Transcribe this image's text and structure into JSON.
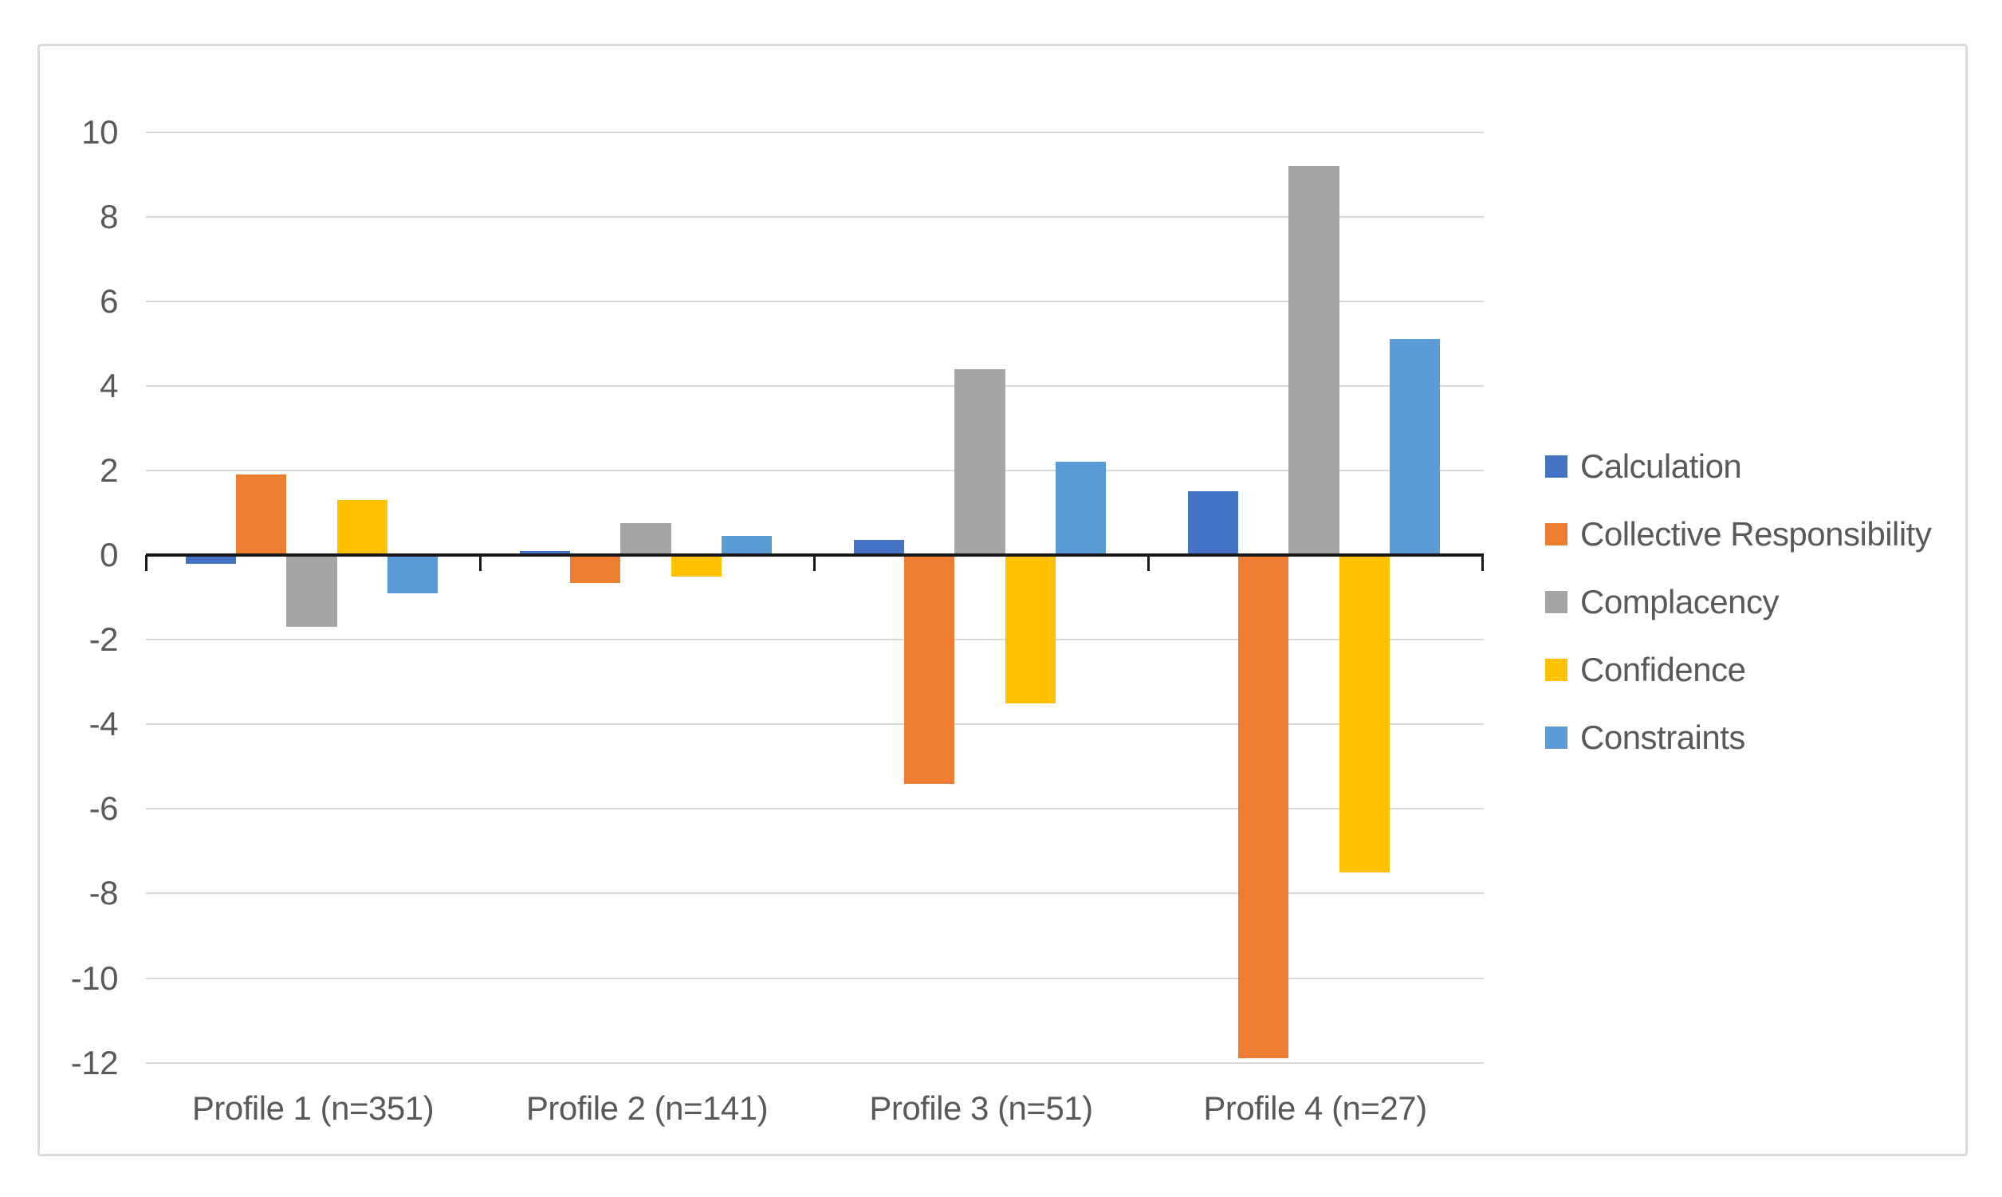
{
  "chart_data": {
    "type": "bar",
    "title": "",
    "categories": [
      "Profile 1 (n=351)",
      "Profile 2 (n=141)",
      "Profile 3 (n=51)",
      "Profile 4 (n=27)"
    ],
    "series": [
      {
        "name": "Calculation",
        "color": "#4472C4",
        "values": [
          -0.2,
          0.1,
          0.35,
          1.5
        ]
      },
      {
        "name": "Collective Responsibility",
        "color": "#ED7D31",
        "values": [
          1.9,
          -0.65,
          -5.4,
          -11.9
        ]
      },
      {
        "name": "Complacency",
        "color": "#A5A5A5",
        "values": [
          -1.7,
          0.75,
          4.4,
          9.2
        ]
      },
      {
        "name": "Confidence",
        "color": "#FFC000",
        "values": [
          1.3,
          -0.5,
          -3.5,
          -7.5
        ]
      },
      {
        "name": "Constraints",
        "color": "#5B9BD5",
        "values": [
          -0.9,
          0.45,
          2.2,
          5.1
        ]
      }
    ],
    "ylim": [
      -12,
      10
    ],
    "ytick_step": 2,
    "yticks": [
      10,
      8,
      6,
      4,
      2,
      0,
      -2,
      -4,
      -6,
      -8,
      -10,
      -12
    ],
    "grid": true,
    "legend_position": "right",
    "axis_color": "#181818",
    "gridline_color": "#D9D9D9",
    "label_color": "#595959"
  }
}
